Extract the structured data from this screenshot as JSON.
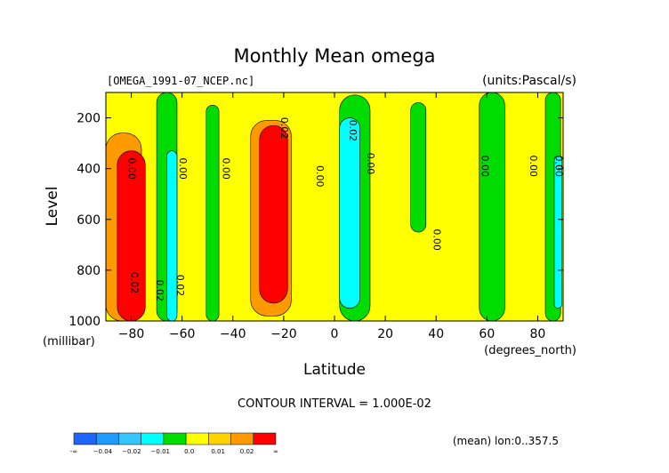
{
  "chart_data": {
    "type": "heatmap",
    "title": "Monthly Mean omega",
    "file_label": "[OMEGA_1991-07_NCEP.nc]",
    "units_label": "(units:Pascal/s)",
    "xlabel": "Latitude",
    "x_units": "(degrees_north)",
    "ylabel": "Level",
    "y_units": "(millibar)",
    "xlim": [
      -90,
      90
    ],
    "ylim": [
      1000,
      100
    ],
    "x_ticks": [
      -80,
      -60,
      -40,
      -20,
      0,
      20,
      40,
      60,
      80
    ],
    "x_tick_labels": [
      "−80",
      "−60",
      "−40",
      "−20",
      "0",
      "20",
      "40",
      "60",
      "80"
    ],
    "y_ticks": [
      200,
      400,
      600,
      800,
      1000
    ],
    "y_tick_labels": [
      "200",
      "400",
      "600",
      "800",
      "1000"
    ],
    "contour_interval_text": "CONTOUR INTERVAL = 1.000E-02",
    "footer_text": "(mean) lon:0..357.5",
    "levels_text": [
      "-∞",
      "−0.04",
      "−0.02",
      "−0.01",
      "0.0",
      "0.01",
      "0.02",
      "∞"
    ],
    "colorbar": {
      "colors": [
        "#1e64ff",
        "#1e9bff",
        "#32c8ff",
        "#00ffff",
        "#00dc00",
        "#ffff00",
        "#ffd200",
        "#ff9900",
        "#ff0000"
      ],
      "labels": [
        "-∞",
        "−0.04",
        "−0.02",
        "−0.01",
        "0.0",
        "0.01",
        "0.02",
        "∞"
      ]
    },
    "contour_labels": [
      {
        "lat": -81,
        "lev": 400,
        "text": "0.00"
      },
      {
        "lat": -61,
        "lev": 400,
        "text": "0.00"
      },
      {
        "lat": -44,
        "lev": 400,
        "text": "0.00"
      },
      {
        "lat": -21,
        "lev": 240,
        "text": "0.02"
      },
      {
        "lat": -7,
        "lev": 430,
        "text": "0.00"
      },
      {
        "lat": 6,
        "lev": 250,
        "text": "0.02"
      },
      {
        "lat": 13,
        "lev": 380,
        "text": "0.00"
      },
      {
        "lat": 39,
        "lev": 680,
        "text": "0.00"
      },
      {
        "lat": 58,
        "lev": 390,
        "text": "0.00"
      },
      {
        "lat": 77,
        "lev": 390,
        "text": "0.00"
      },
      {
        "lat": 87,
        "lev": 390,
        "text": "0.00"
      },
      {
        "lat": -80,
        "lev": 850,
        "text": "0.02"
      },
      {
        "lat": -70,
        "lev": 880,
        "text": "0.02"
      },
      {
        "lat": -62,
        "lev": 860,
        "text": "0.02"
      }
    ],
    "regions": [
      {
        "value": "0.0 to 0.01",
        "color": "#ffff00",
        "lat": [
          -90,
          90
        ],
        "lev": [
          100,
          1000
        ],
        "kind": "background"
      },
      {
        "value": "0.0 to -0.01",
        "color": "#00dc00",
        "kind": "band",
        "lat_center": -66,
        "width": 8,
        "lev": [
          100,
          1000
        ]
      },
      {
        "value": "0.0 to -0.01",
        "color": "#00dc00",
        "kind": "band",
        "lat_center": -48,
        "width": 5,
        "lev": [
          150,
          1000
        ]
      },
      {
        "value": "0.0 to -0.01",
        "color": "#00dc00",
        "kind": "band",
        "lat_center": 8,
        "width": 12,
        "lev": [
          110,
          1000
        ]
      },
      {
        "value": "0.0 to -0.01",
        "color": "#00dc00",
        "kind": "band",
        "lat_center": 33,
        "width": 6,
        "lev": [
          140,
          650
        ]
      },
      {
        "value": "0.0 to -0.01",
        "color": "#00dc00",
        "kind": "band",
        "lat_center": 62,
        "width": 10,
        "lev": [
          100,
          1000
        ]
      },
      {
        "value": "0.0 to -0.01",
        "color": "#00dc00",
        "kind": "band",
        "lat_center": 86,
        "width": 6,
        "lev": [
          100,
          1000
        ]
      },
      {
        "value": "-0.01 to -0.02",
        "color": "#00ffff",
        "kind": "band",
        "lat_center": -64,
        "width": 4,
        "lev": [
          330,
          1000
        ]
      },
      {
        "value": "-0.01 to -0.02",
        "color": "#00ffff",
        "kind": "band",
        "lat_center": 6,
        "width": 8,
        "lev": [
          200,
          950
        ]
      },
      {
        "value": "-0.01 to -0.02",
        "color": "#00ffff",
        "kind": "band",
        "lat_center": 88,
        "width": 3,
        "lev": [
          350,
          950
        ]
      },
      {
        "value": "0.01 to 0.02",
        "color": "#ff9900",
        "kind": "band",
        "lat_center": -25,
        "width": 16,
        "lev": [
          210,
          980
        ]
      },
      {
        "value": "0.02+",
        "color": "#ff0000",
        "kind": "band",
        "lat_center": -24,
        "width": 11,
        "lev": [
          230,
          930
        ]
      },
      {
        "value": "0.01 to 0.02",
        "color": "#ff9900",
        "kind": "band",
        "lat_center": -83,
        "width": 14,
        "lev": [
          260,
          1000
        ]
      },
      {
        "value": "0.02+",
        "color": "#ff0000",
        "kind": "band",
        "lat_center": -80,
        "width": 11,
        "lev": [
          330,
          1000
        ]
      }
    ]
  }
}
